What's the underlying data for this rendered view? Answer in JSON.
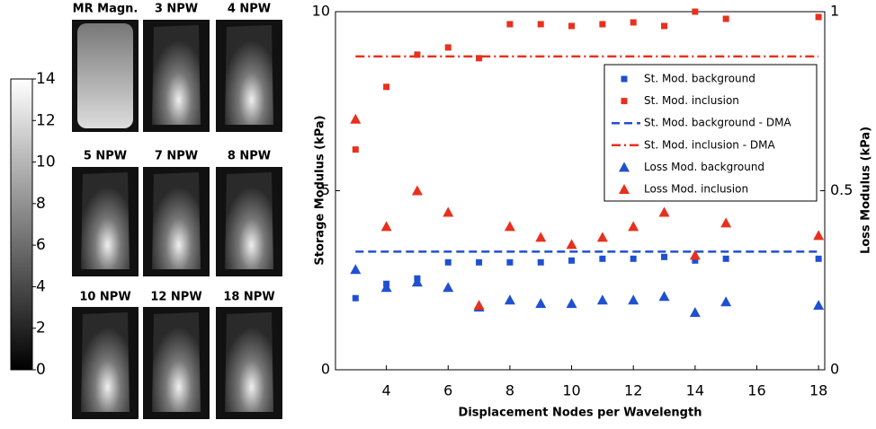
{
  "image_panels": {
    "labels": [
      "MR Magn.",
      "3 NPW",
      "4 NPW",
      "5 NPW",
      "7 NPW",
      "8 NPW",
      "10 NPW",
      "12 NPW",
      "18 NPW"
    ]
  },
  "colorbar": {
    "ylim": [
      0,
      14
    ],
    "yticks": [
      0,
      2,
      4,
      6,
      8,
      10,
      12,
      14
    ]
  },
  "chart_data": {
    "type": "scatter",
    "xlabel": "Displacement Nodes per Wavelength",
    "ylabel": "Storage Modulus (kPa)",
    "y2label": "Loss Modulus (kPa)",
    "x": [
      3,
      4,
      5,
      6,
      7,
      8,
      9,
      10,
      11,
      12,
      13,
      14,
      15,
      18
    ],
    "xlim": [
      2.35,
      18.2
    ],
    "xticks": [
      4,
      6,
      8,
      10,
      12,
      14,
      16,
      18
    ],
    "ylim": [
      0,
      10
    ],
    "yticks": [
      0,
      5,
      10
    ],
    "y2lim": [
      0,
      1
    ],
    "y2ticks": [
      0,
      0.5,
      1
    ],
    "legend": "upper right",
    "series": [
      {
        "name": "St. Mod. background",
        "color": "#2050d0",
        "marker": "square",
        "axis": "y",
        "values": [
          2.0,
          2.4,
          2.55,
          3.0,
          3.0,
          3.0,
          3.0,
          3.05,
          3.1,
          3.1,
          3.15,
          3.05,
          3.1,
          3.1
        ]
      },
      {
        "name": "St. Mod. inclusion",
        "color": "#e8301e",
        "marker": "square",
        "axis": "y",
        "values": [
          6.15,
          7.9,
          8.8,
          9.0,
          8.7,
          9.65,
          9.65,
          9.6,
          9.65,
          9.7,
          9.6,
          10.0,
          9.8,
          9.85
        ]
      },
      {
        "name": "St. Mod. background - DMA",
        "color": "#2050d0",
        "marker": "dash",
        "axis": "y",
        "value": 3.3
      },
      {
        "name": "St. Mod. inclusion - DMA",
        "color": "#e8301e",
        "marker": "dashdot",
        "axis": "y",
        "value": 8.75
      },
      {
        "name": "Loss Mod. background",
        "color": "#2050d0",
        "marker": "triangle",
        "axis": "y2",
        "values": [
          0.28,
          0.23,
          0.245,
          0.23,
          0.175,
          0.195,
          0.185,
          0.185,
          0.195,
          0.195,
          0.205,
          0.16,
          0.19,
          0.18
        ]
      },
      {
        "name": "Loss Mod. inclusion",
        "color": "#e8301e",
        "marker": "triangle",
        "axis": "y2",
        "values": [
          0.7,
          0.4,
          0.5,
          0.44,
          0.18,
          0.4,
          0.37,
          0.35,
          0.37,
          0.4,
          0.44,
          0.32,
          0.41,
          0.375
        ]
      }
    ]
  }
}
